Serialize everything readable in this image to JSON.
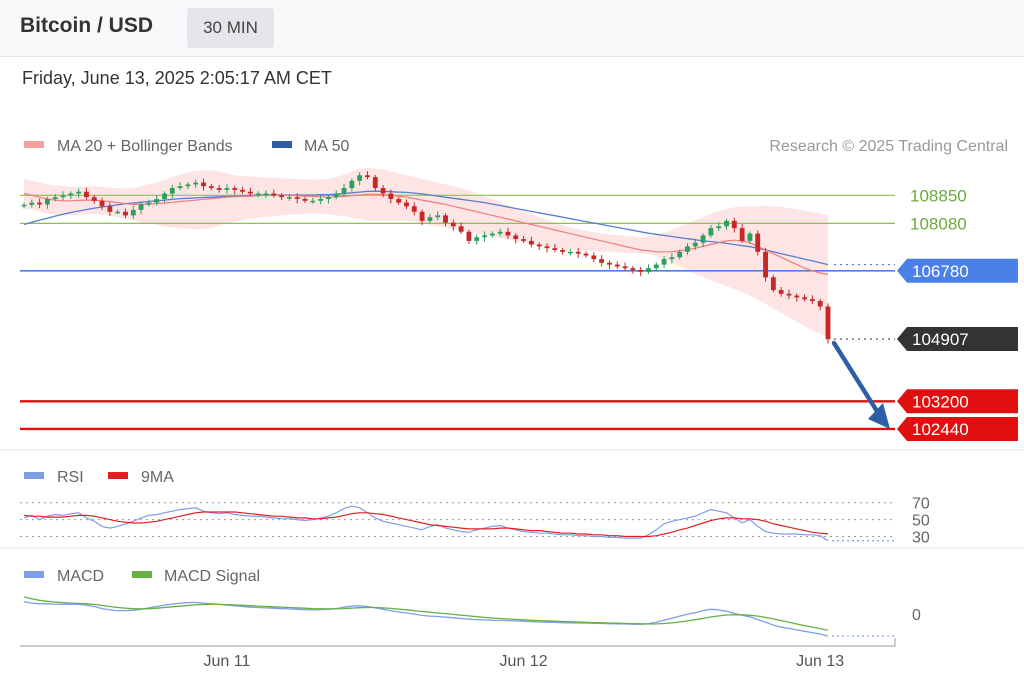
{
  "header": {
    "title": "Bitcoin / USD",
    "timeframe": "30 MIN"
  },
  "date_line": "Friday, June 13, 2025 2:05:17 AM CET",
  "colors": {
    "ma20": "#f07c7c",
    "band_fill": "#fcdede",
    "ma50": "#5b7ccf",
    "support": "#e01010",
    "resistance": "#8cc050",
    "pivot": "#4a80e8",
    "arrow": "#2f5ea8",
    "up_candle": "#2e9e5b",
    "down_candle": "#c62828",
    "rsi": "#7e9ee8",
    "rsi_ma": "#e02020",
    "macd": "#7e9ee8",
    "macd_signal": "#66b044"
  },
  "chart_data": [
    {
      "type": "candlestick",
      "legend": [
        {
          "name": "MA 20 + Bollinger Bands",
          "icon": "pink-swatch-icon"
        },
        {
          "name": "MA 50",
          "icon": "blue-swatch-icon"
        }
      ],
      "credit": "Research © 2025 Trading Central",
      "ylim": [
        102000,
        109600
      ],
      "x_ticks": [
        {
          "label": "Jun 11",
          "index": 26
        },
        {
          "label": "Jun 12",
          "index": 64
        },
        {
          "label": "Jun 13",
          "index": 102
        }
      ],
      "levels": [
        {
          "value": 108850,
          "label": "108850",
          "kind": "resistance"
        },
        {
          "value": 108080,
          "label": "108080",
          "kind": "resistance"
        },
        {
          "value": 106780,
          "label": "106780",
          "kind": "pivot"
        },
        {
          "value": 103200,
          "label": "103200",
          "kind": "support"
        },
        {
          "value": 102440,
          "label": "102440",
          "kind": "support"
        }
      ],
      "last_price": {
        "value": 104907,
        "label": "104907"
      },
      "close": [
        108590,
        108650,
        108600,
        108750,
        108800,
        108850,
        108900,
        108950,
        108800,
        108700,
        108550,
        108400,
        108400,
        108300,
        108450,
        108600,
        108650,
        108750,
        108900,
        109050,
        109100,
        109150,
        109200,
        109100,
        109050,
        109000,
        109050,
        109000,
        108950,
        108900,
        108900,
        108900,
        108850,
        108800,
        108800,
        108750,
        108700,
        108700,
        108750,
        108800,
        108900,
        109050,
        109250,
        109400,
        109350,
        109050,
        108900,
        108750,
        108650,
        108550,
        108400,
        108150,
        108250,
        108300,
        108100,
        108000,
        107850,
        107600,
        107700,
        107750,
        107800,
        107850,
        107750,
        107650,
        107600,
        107500,
        107450,
        107400,
        107350,
        107300,
        107300,
        107250,
        107200,
        107100,
        107000,
        106950,
        106900,
        106850,
        106800,
        106750,
        106850,
        106950,
        107100,
        107150,
        107300,
        107450,
        107550,
        107750,
        107950,
        108000,
        108150,
        107950,
        107600,
        107800,
        107300,
        106600,
        106250,
        106150,
        106100,
        106050,
        106000,
        105950,
        105800,
        104900
      ],
      "ma20": [
        108900,
        108850,
        108800,
        108750,
        108720,
        108700,
        108700,
        108710,
        108720,
        108720,
        108700,
        108680,
        108650,
        108620,
        108600,
        108600,
        108610,
        108620,
        108640,
        108660,
        108680,
        108700,
        108720,
        108740,
        108760,
        108780,
        108800,
        108810,
        108820,
        108830,
        108840,
        108850,
        108850,
        108850,
        108850,
        108840,
        108830,
        108820,
        108810,
        108800,
        108810,
        108820,
        108840,
        108860,
        108880,
        108880,
        108870,
        108850,
        108830,
        108800,
        108760,
        108720,
        108680,
        108640,
        108600,
        108550,
        108500,
        108450,
        108400,
        108350,
        108300,
        108250,
        108200,
        108150,
        108100,
        108050,
        108000,
        107950,
        107900,
        107850,
        107800,
        107750,
        107700,
        107650,
        107600,
        107550,
        107500,
        107450,
        107400,
        107350,
        107330,
        107300,
        107300,
        107300,
        107330,
        107360,
        107400,
        107450,
        107500,
        107550,
        107600,
        107620,
        107600,
        107550,
        107450,
        107350,
        107250,
        107150,
        107050,
        106950,
        106850,
        106780,
        106720,
        106680
      ],
      "bb_upper": [
        109300,
        109250,
        109200,
        109150,
        109120,
        109100,
        109080,
        109090,
        109100,
        109100,
        109080,
        109060,
        109050,
        109040,
        109050,
        109100,
        109150,
        109200,
        109280,
        109350,
        109420,
        109480,
        109520,
        109540,
        109540,
        109500,
        109450,
        109400,
        109380,
        109360,
        109350,
        109340,
        109330,
        109320,
        109310,
        109300,
        109290,
        109280,
        109290,
        109300,
        109350,
        109420,
        109500,
        109580,
        109600,
        109580,
        109550,
        109500,
        109450,
        109400,
        109350,
        109300,
        109250,
        109200,
        109150,
        109100,
        109050,
        108980,
        108900,
        108820,
        108740,
        108660,
        108580,
        108500,
        108420,
        108340,
        108260,
        108180,
        108100,
        108030,
        107970,
        107920,
        107880,
        107840,
        107800,
        107780,
        107760,
        107740,
        107720,
        107700,
        107720,
        107760,
        107820,
        107900,
        107990,
        108080,
        108170,
        108260,
        108350,
        108420,
        108480,
        108520,
        108540,
        108550,
        108560,
        108560,
        108550,
        108530,
        108500,
        108470,
        108430,
        108390,
        108350,
        108300
      ],
      "bb_lower": [
        108500,
        108450,
        108400,
        108350,
        108320,
        108300,
        108300,
        108320,
        108340,
        108340,
        108320,
        108300,
        108250,
        108200,
        108150,
        108100,
        108070,
        108040,
        108000,
        107970,
        107950,
        107930,
        107920,
        107930,
        107960,
        108020,
        108080,
        108130,
        108170,
        108200,
        108230,
        108260,
        108280,
        108300,
        108320,
        108330,
        108340,
        108350,
        108340,
        108330,
        108300,
        108280,
        108240,
        108200,
        108160,
        108150,
        108150,
        108160,
        108160,
        108150,
        108120,
        108080,
        108040,
        108000,
        107960,
        107920,
        107880,
        107840,
        107800,
        107760,
        107720,
        107680,
        107640,
        107600,
        107560,
        107520,
        107480,
        107440,
        107400,
        107370,
        107350,
        107340,
        107330,
        107320,
        107310,
        107300,
        107290,
        107280,
        107270,
        107260,
        107240,
        107180,
        107100,
        107000,
        106900,
        106800,
        106700,
        106600,
        106520,
        106440,
        106360,
        106280,
        106200,
        106100,
        105990,
        105870,
        105750,
        105620,
        105500,
        105380,
        105260,
        105150,
        105050,
        104950
      ],
      "ma50": [
        108050,
        108110,
        108170,
        108220,
        108280,
        108330,
        108380,
        108420,
        108460,
        108500,
        108530,
        108560,
        108590,
        108620,
        108640,
        108660,
        108680,
        108700,
        108720,
        108740,
        108760,
        108770,
        108780,
        108790,
        108800,
        108810,
        108820,
        108830,
        108840,
        108850,
        108860,
        108860,
        108860,
        108860,
        108860,
        108860,
        108860,
        108860,
        108870,
        108870,
        108880,
        108900,
        108920,
        108940,
        108960,
        108960,
        108960,
        108950,
        108940,
        108930,
        108910,
        108890,
        108860,
        108830,
        108800,
        108770,
        108740,
        108710,
        108680,
        108650,
        108610,
        108570,
        108530,
        108490,
        108450,
        108410,
        108370,
        108330,
        108290,
        108250,
        108210,
        108170,
        108130,
        108090,
        108050,
        108010,
        107970,
        107930,
        107890,
        107850,
        107810,
        107780,
        107750,
        107720,
        107690,
        107660,
        107630,
        107600,
        107580,
        107560,
        107530,
        107500,
        107470,
        107440,
        107400,
        107350,
        107300,
        107250,
        107200,
        107150,
        107100,
        107050,
        107000,
        106950
      ]
    },
    {
      "type": "line",
      "legend": [
        {
          "name": "RSI",
          "icon": "blue-swatch-icon"
        },
        {
          "name": "9MA",
          "icon": "red-swatch-icon"
        }
      ],
      "ylim": [
        20,
        85
      ],
      "ticks": [
        {
          "value": 70,
          "label": "70"
        },
        {
          "value": 50,
          "label": "50"
        },
        {
          "value": 30,
          "label": "30"
        }
      ],
      "series": [
        {
          "name": "RSI",
          "values": [
            52,
            55,
            50,
            54,
            56,
            55,
            57,
            58,
            52,
            48,
            42,
            40,
            42,
            45,
            48,
            52,
            55,
            56,
            58,
            60,
            62,
            63,
            64,
            60,
            58,
            57,
            58,
            56,
            55,
            54,
            54,
            53,
            52,
            51,
            51,
            50,
            49,
            50,
            52,
            54,
            58,
            63,
            66,
            64,
            58,
            52,
            48,
            46,
            44,
            42,
            40,
            38,
            42,
            44,
            40,
            38,
            36,
            35,
            38,
            40,
            42,
            43,
            40,
            38,
            36,
            35,
            34,
            34,
            33,
            32,
            32,
            31,
            31,
            30,
            30,
            29,
            29,
            28,
            28,
            28,
            32,
            38,
            45,
            48,
            50,
            52,
            54,
            58,
            62,
            60,
            58,
            52,
            46,
            50,
            42,
            36,
            34,
            33,
            33,
            33,
            32,
            32,
            31,
            25
          ]
        },
        {
          "name": "9MA",
          "values": [
            55,
            54,
            54,
            53,
            53,
            53,
            54,
            55,
            55,
            54,
            52,
            50,
            48,
            47,
            46,
            46,
            47,
            48,
            50,
            52,
            54,
            56,
            58,
            59,
            59,
            59,
            59,
            59,
            58,
            57,
            56,
            55,
            54,
            54,
            53,
            52,
            52,
            51,
            51,
            52,
            53,
            55,
            57,
            58,
            58,
            57,
            56,
            54,
            52,
            50,
            48,
            46,
            44,
            43,
            42,
            41,
            40,
            39,
            39,
            39,
            39,
            40,
            40,
            39,
            38,
            37,
            37,
            36,
            35,
            34,
            34,
            33,
            33,
            32,
            32,
            31,
            31,
            30,
            30,
            30,
            30,
            31,
            33,
            35,
            38,
            40,
            43,
            46,
            49,
            51,
            52,
            52,
            51,
            51,
            50,
            48,
            45,
            43,
            41,
            39,
            37,
            35,
            34,
            33
          ]
        }
      ]
    },
    {
      "type": "line",
      "legend": [
        {
          "name": "MACD",
          "icon": "blue-swatch-icon"
        },
        {
          "name": "MACD Signal",
          "icon": "green-swatch-icon"
        }
      ],
      "ylim": [
        -450,
        350
      ],
      "ticks": [
        {
          "value": 0,
          "label": "0"
        }
      ],
      "series": [
        {
          "name": "MACD",
          "values": [
            180,
            160,
            150,
            150,
            145,
            140,
            145,
            140,
            130,
            110,
            80,
            60,
            50,
            50,
            55,
            70,
            90,
            110,
            130,
            145,
            160,
            165,
            170,
            160,
            150,
            140,
            130,
            120,
            110,
            100,
            95,
            90,
            85,
            80,
            75,
            70,
            65,
            62,
            65,
            70,
            80,
            100,
            115,
            120,
            110,
            90,
            70,
            50,
            30,
            15,
            0,
            -20,
            -30,
            -35,
            -45,
            -55,
            -65,
            -75,
            -80,
            -85,
            -90,
            -92,
            -95,
            -100,
            -105,
            -110,
            -115,
            -118,
            -120,
            -125,
            -128,
            -130,
            -132,
            -135,
            -138,
            -140,
            -142,
            -145,
            -148,
            -150,
            -140,
            -120,
            -90,
            -60,
            -30,
            0,
            20,
            50,
            70,
            60,
            40,
            10,
            -20,
            -40,
            -80,
            -120,
            -160,
            -190,
            -210,
            -230,
            -250,
            -270,
            -290,
            -320
          ]
        },
        {
          "name": "MACD Signal",
          "values": [
            250,
            220,
            200,
            185,
            175,
            165,
            160,
            155,
            150,
            140,
            125,
            110,
            95,
            85,
            78,
            75,
            78,
            85,
            95,
            105,
            115,
            125,
            135,
            140,
            142,
            140,
            137,
            133,
            128,
            122,
            116,
            110,
            105,
            100,
            95,
            90,
            85,
            80,
            77,
            75,
            76,
            80,
            86,
            92,
            96,
            95,
            90,
            82,
            72,
            62,
            50,
            38,
            27,
            16,
            6,
            -5,
            -16,
            -27,
            -38,
            -48,
            -57,
            -65,
            -72,
            -78,
            -84,
            -90,
            -95,
            -100,
            -104,
            -108,
            -112,
            -116,
            -120,
            -124,
            -127,
            -130,
            -133,
            -136,
            -139,
            -142,
            -144,
            -143,
            -138,
            -128,
            -115,
            -100,
            -82,
            -62,
            -42,
            -26,
            -14,
            -9,
            -10,
            -16,
            -30,
            -48,
            -70,
            -95,
            -120,
            -145,
            -168,
            -190,
            -212,
            -235
          ]
        }
      ]
    }
  ]
}
